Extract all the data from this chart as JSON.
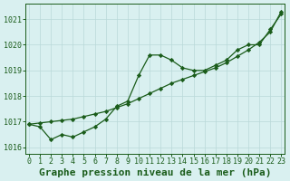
{
  "title": "Graphe pression niveau de la mer (hPa)",
  "x_labels": [
    "0",
    "1",
    "2",
    "3",
    "4",
    "5",
    "6",
    "7",
    "8",
    "9",
    "10",
    "11",
    "12",
    "13",
    "14",
    "15",
    "16",
    "17",
    "18",
    "19",
    "20",
    "21",
    "22",
    "23"
  ],
  "x_values": [
    0,
    1,
    2,
    3,
    4,
    5,
    6,
    7,
    8,
    9,
    10,
    11,
    12,
    13,
    14,
    15,
    16,
    17,
    18,
    19,
    20,
    21,
    22,
    23
  ],
  "line1_y": [
    1016.9,
    1016.8,
    1016.3,
    1016.5,
    1016.4,
    1016.6,
    1016.8,
    1017.1,
    1017.6,
    1017.8,
    1018.8,
    1019.6,
    1019.6,
    1019.4,
    1019.1,
    1019.0,
    1019.0,
    1019.2,
    1019.4,
    1019.8,
    1020.0,
    1020.0,
    1020.6,
    1021.2
  ],
  "line2_y": [
    1016.9,
    1016.95,
    1017.0,
    1017.05,
    1017.1,
    1017.2,
    1017.3,
    1017.4,
    1017.55,
    1017.7,
    1017.9,
    1018.1,
    1018.3,
    1018.5,
    1018.65,
    1018.8,
    1018.95,
    1019.1,
    1019.3,
    1019.55,
    1019.8,
    1020.1,
    1020.5,
    1021.3
  ],
  "line_color": "#1a5c1a",
  "bg_color": "#d9f0f0",
  "grid_color": "#b8d8d8",
  "ylim": [
    1015.75,
    1021.6
  ],
  "yticks": [
    1016,
    1017,
    1018,
    1019,
    1020,
    1021
  ],
  "xlim": [
    -0.3,
    23.3
  ],
  "title_fontsize": 8,
  "tick_fontsize": 6
}
